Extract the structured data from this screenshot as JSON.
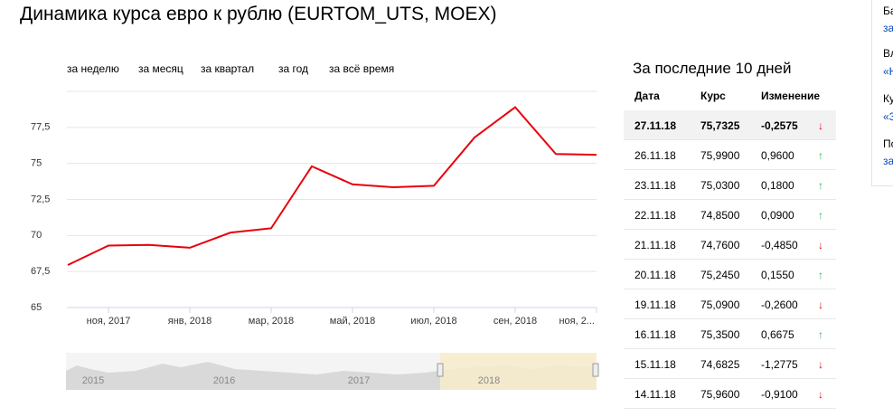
{
  "header": {
    "title": "Динамика курса евро к рублю (EURTOM_UTS, MOEX)"
  },
  "periods": [
    "за неделю",
    "за месяц",
    "за квартал",
    "за год",
    "за всё время"
  ],
  "chart_data": {
    "type": "line",
    "categories": [
      null,
      "ноя, 2017",
      null,
      "янв, 2018",
      null,
      "мар, 2018",
      null,
      "май, 2018",
      null,
      "июл, 2018",
      null,
      "сен, 2018",
      null,
      "ноя, 2..."
    ],
    "series": [
      {
        "name": "EURTOM_UTS",
        "color": "#e8000b",
        "values": [
          67.95,
          69.3,
          69.35,
          69.15,
          70.2,
          70.5,
          74.8,
          73.55,
          73.35,
          73.45,
          76.8,
          78.9,
          75.65,
          75.6
        ]
      }
    ],
    "ylim": [
      65,
      80
    ],
    "yticks": [
      {
        "value": 65,
        "label": "65"
      },
      {
        "value": 67.5,
        "label": "67,5"
      },
      {
        "value": 70,
        "label": "70"
      },
      {
        "value": 72.5,
        "label": "72,5"
      },
      {
        "value": 75,
        "label": "75"
      },
      {
        "value": 77.5,
        "label": "77,5"
      }
    ],
    "grid": true
  },
  "navigator": {
    "years": [
      "2015",
      "2016",
      "2017",
      "2018"
    ]
  },
  "table": {
    "title": "За последние 10 дней",
    "columns": [
      "Дата",
      "Курс",
      "Изменение"
    ],
    "rows": [
      [
        "27.11.18",
        "75,7325",
        "-0,2575",
        "↓"
      ],
      [
        "26.11.18",
        "75,9900",
        "0,9600",
        "↑"
      ],
      [
        "23.11.18",
        "75,0300",
        "0,1800",
        "↑"
      ],
      [
        "22.11.18",
        "74,8500",
        "0,0900",
        "↑"
      ],
      [
        "21.11.18",
        "74,7600",
        "-0,4850",
        "↓"
      ],
      [
        "20.11.18",
        "75,2450",
        "0,1550",
        "↑"
      ],
      [
        "19.11.18",
        "75,0900",
        "-0,2600",
        "↓"
      ],
      [
        "16.11.18",
        "75,3500",
        "0,6675",
        "↑"
      ],
      [
        "15.11.18",
        "74,6825",
        "-1,2775",
        "↓"
      ],
      [
        "14.11.18",
        "75,9600",
        "-0,9100",
        "↓"
      ]
    ]
  },
  "side": [
    "Ба",
    "за",
    "Вл",
    "«Н",
    "Ку",
    "«З",
    "По",
    "за"
  ]
}
